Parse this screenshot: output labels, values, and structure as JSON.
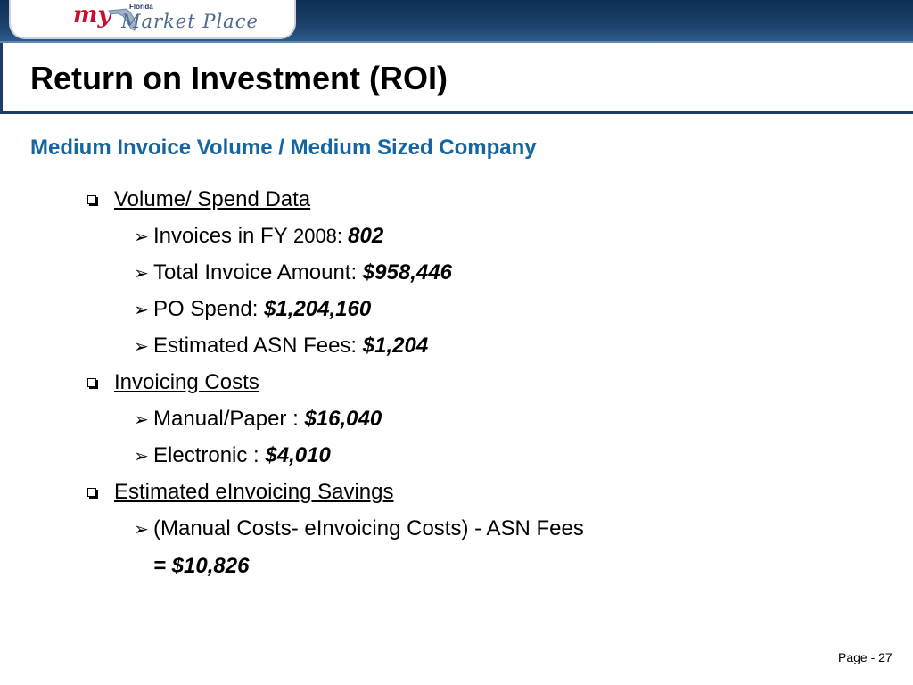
{
  "header": {
    "logo_my": "my",
    "logo_florida": "Florida",
    "logo_market": "Market Place"
  },
  "slide": {
    "title": "Return on Investment (ROI)",
    "subtitle": "Medium Invoice Volume / Medium Sized Company",
    "sections": [
      {
        "heading": "Volume/ Spend Data",
        "items": [
          {
            "label": "Invoices in FY ",
            "label_small": "2008: ",
            "value": "802"
          },
          {
            "label": "Total Invoice Amount: ",
            "value": "$958,446"
          },
          {
            "label": "PO Spend: ",
            "value": "$1,204,160"
          },
          {
            "label": "Estimated ASN Fees: ",
            "value": "$1,204"
          }
        ]
      },
      {
        "heading": "Invoicing Costs",
        "items": [
          {
            "label": "Manual/Paper : ",
            "value": "$16,040"
          },
          {
            "label": "Electronic : ",
            "value": "$4,010"
          }
        ]
      },
      {
        "heading": "Estimated eInvoicing Savings",
        "items": [
          {
            "label": "(Manual Costs- eInvoicing Costs) - ASN Fees"
          }
        ],
        "result": "= $10,826"
      }
    ],
    "page_number": "Page - 27"
  }
}
